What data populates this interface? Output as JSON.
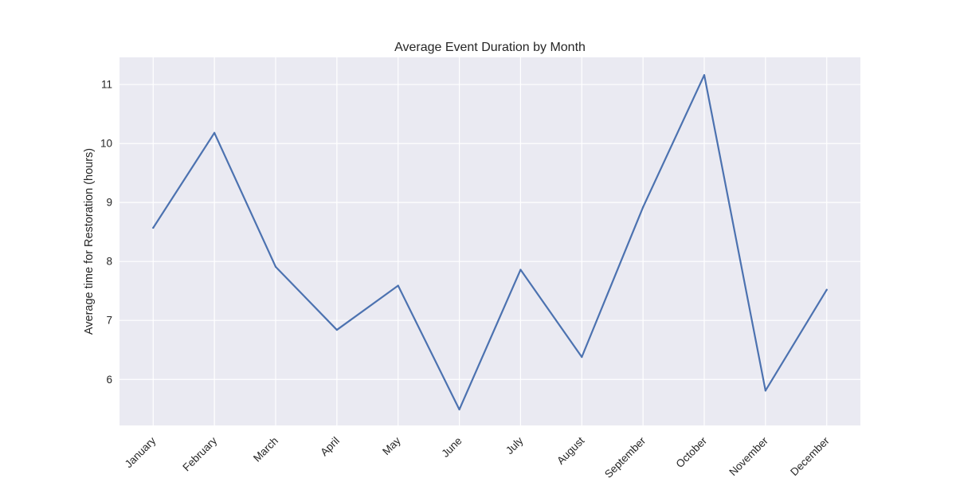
{
  "chart_data": {
    "type": "line",
    "title": "Average Event Duration by Month",
    "xlabel": "",
    "ylabel": "Average time for Restoration (hours)",
    "categories": [
      "January",
      "February",
      "March",
      "April",
      "May",
      "June",
      "July",
      "August",
      "September",
      "October",
      "November",
      "December"
    ],
    "series": [
      {
        "name": "",
        "color": "#4c72b0",
        "values": [
          8.57,
          10.18,
          7.91,
          6.84,
          7.59,
          5.49,
          7.86,
          6.38,
          8.92,
          11.16,
          5.81,
          7.52
        ]
      }
    ],
    "yticks": [
      6,
      7,
      8,
      9,
      10,
      11
    ],
    "ylim": [
      5.22,
      11.46
    ],
    "grid": true,
    "background_color": "#eaeaf2",
    "grid_color": "#ffffff"
  }
}
